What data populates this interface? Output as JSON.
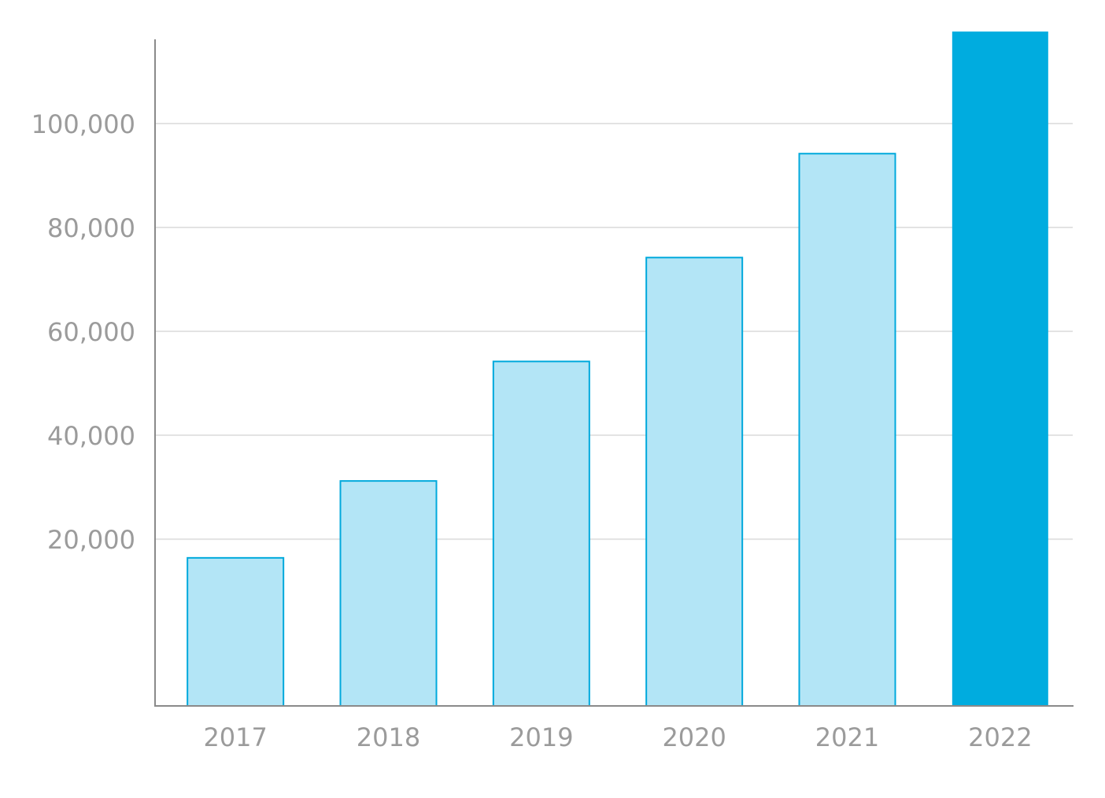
{
  "chart_data": {
    "type": "bar",
    "categories": [
      "2017",
      "2018",
      "2019",
      "2020",
      "2021",
      "2022"
    ],
    "values": [
      16400,
      31200,
      54200,
      74200,
      94200,
      117700
    ],
    "highlighted_category": "2022",
    "y_ticks": [
      20000,
      40000,
      60000,
      80000,
      100000
    ],
    "y_tick_labels": [
      "20,000",
      "40,000",
      "60,000",
      "80,000",
      "100,000"
    ],
    "ylim": [
      -12100,
      116200
    ],
    "grid": true,
    "title": "",
    "xlabel": "",
    "ylabel": "",
    "colors": {
      "bar_fill": "#b3e5f6",
      "bar_stroke": "#00a9dc",
      "highlight_fill": "#00acdf",
      "grid": "#e3e3e3",
      "axis": "#8a8a8a",
      "tick_text": "#9b9b9b"
    }
  }
}
